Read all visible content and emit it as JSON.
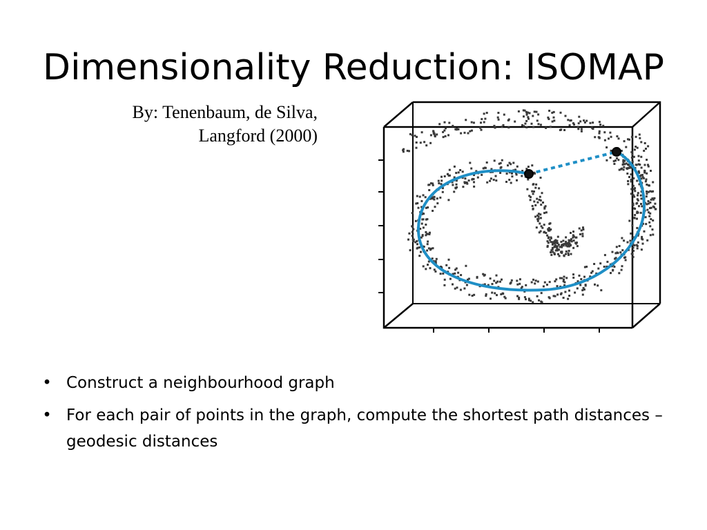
{
  "slide": {
    "title": "Dimensionality Reduction: ISOMAP",
    "byline_line1": "By: Tenenbaum, de Silva,",
    "byline_line2": "Langford (2000)"
  },
  "bullets": [
    {
      "marker": "•",
      "text": "Construct a neighbourhood graph"
    },
    {
      "marker": "•",
      "text": "For each pair of points in the graph, compute the shortest path distances – geodesic distances"
    }
  ],
  "figure": {
    "point_color": "#3a3a3a",
    "geodesic_color": "#1f8fc6",
    "endpoint_color": "#111111"
  }
}
